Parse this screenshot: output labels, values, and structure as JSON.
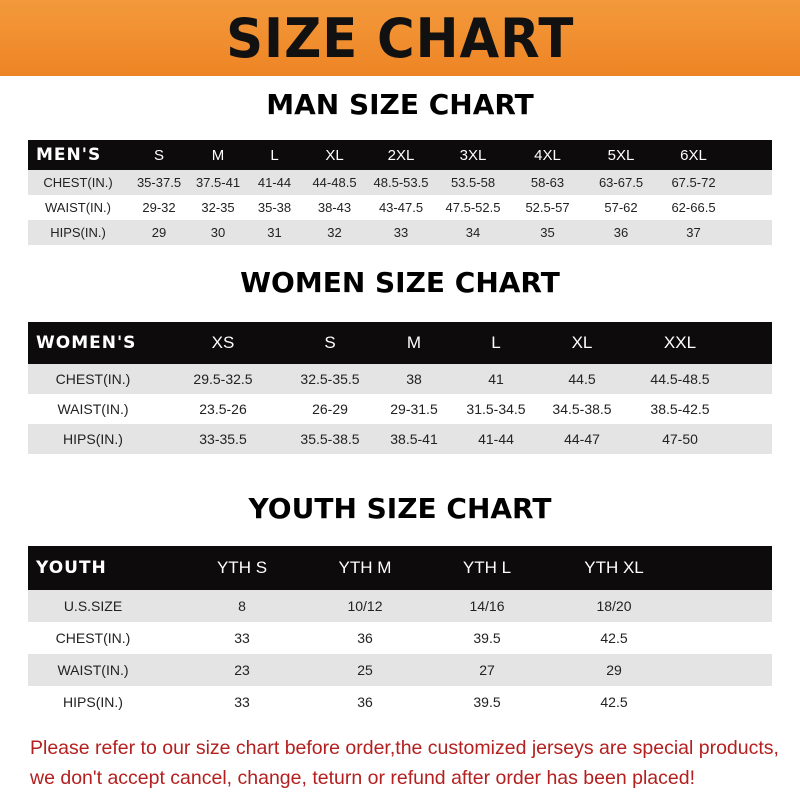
{
  "banner": {
    "title": "SIZE CHART",
    "color": "#f08a2a"
  },
  "men": {
    "title": "MAN SIZE CHART",
    "header": [
      "MEN'S",
      "S",
      "M",
      "L",
      "XL",
      "2XL",
      "3XL",
      "4XL",
      "5XL",
      "6XL"
    ],
    "rows": [
      [
        "CHEST(IN.)",
        "35-37.5",
        "37.5-41",
        "41-44",
        "44-48.5",
        "48.5-53.5",
        "53.5-58",
        "58-63",
        "63-67.5",
        "67.5-72"
      ],
      [
        "WAIST(IN.)",
        "29-32",
        "32-35",
        "35-38",
        "38-43",
        "43-47.5",
        "47.5-52.5",
        "52.5-57",
        "57-62",
        "62-66.5"
      ],
      [
        "HIPS(IN.)",
        "29",
        "30",
        "31",
        "32",
        "33",
        "34",
        "35",
        "36",
        "37"
      ]
    ]
  },
  "women": {
    "title": "WOMEN SIZE CHART",
    "header": [
      "WOMEN'S",
      "XS",
      "S",
      "M",
      "L",
      "XL",
      "XXL"
    ],
    "rows": [
      [
        "CHEST(IN.)",
        "29.5-32.5",
        "32.5-35.5",
        "38",
        "41",
        "44.5",
        "44.5-48.5"
      ],
      [
        "WAIST(IN.)",
        "23.5-26",
        "26-29",
        "29-31.5",
        "31.5-34.5",
        "34.5-38.5",
        "38.5-42.5"
      ],
      [
        "HIPS(IN.)",
        "33-35.5",
        "35.5-38.5",
        "38.5-41",
        "41-44",
        "44-47",
        "47-50"
      ]
    ]
  },
  "youth": {
    "title": "YOUTH SIZE CHART",
    "header": [
      "YOUTH",
      "YTH S",
      "YTH M",
      "YTH L",
      "YTH XL"
    ],
    "rows": [
      [
        "U.S.SIZE",
        "8",
        "10/12",
        "14/16",
        "18/20"
      ],
      [
        "CHEST(IN.)",
        "33",
        "36",
        "39.5",
        "42.5"
      ],
      [
        "WAIST(IN.)",
        "23",
        "25",
        "27",
        "29"
      ],
      [
        "HIPS(IN.)",
        "33",
        "36",
        "39.5",
        "42.5"
      ]
    ]
  },
  "notice": {
    "line1": "Please refer to our size chart before order,the customized jerseys are special products,",
    "line2": "we don't accept cancel, change, teturn or refund after order has been placed!",
    "color": "#b3201f"
  }
}
